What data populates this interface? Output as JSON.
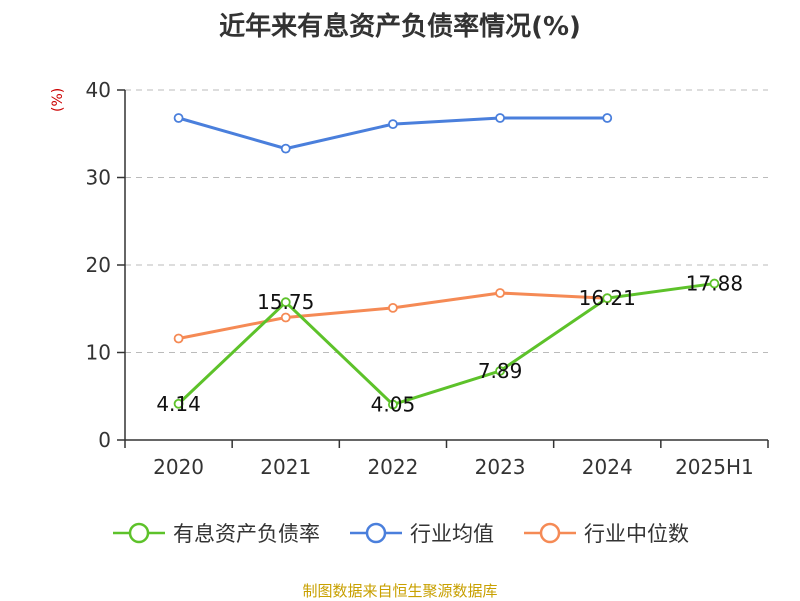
{
  "chart_data": {
    "type": "line",
    "title": "近年来有息资产负债率情况(%)",
    "ylabel": "(%)",
    "xlabel": "",
    "categories": [
      "2020",
      "2021",
      "2022",
      "2023",
      "2024",
      "2025H1"
    ],
    "ylim": [
      0,
      40
    ],
    "yticks": [
      0,
      10,
      20,
      30,
      40
    ],
    "grid": true,
    "legend_position": "bottom",
    "series": [
      {
        "name": "有息资产负债率",
        "color": "#5dc22a",
        "values": [
          4.14,
          15.75,
          4.05,
          7.89,
          16.21,
          17.88
        ],
        "show_labels": true
      },
      {
        "name": "行业均值",
        "color": "#4a7fdc",
        "values": [
          36.8,
          33.3,
          36.1,
          36.8,
          36.8,
          null
        ],
        "show_labels": false
      },
      {
        "name": "行业中位数",
        "color": "#f58a55",
        "values": [
          11.6,
          14.0,
          15.1,
          16.8,
          16.2,
          null
        ],
        "show_labels": false
      }
    ]
  },
  "footer": {
    "source": "制图数据来自恒生聚源数据库"
  }
}
